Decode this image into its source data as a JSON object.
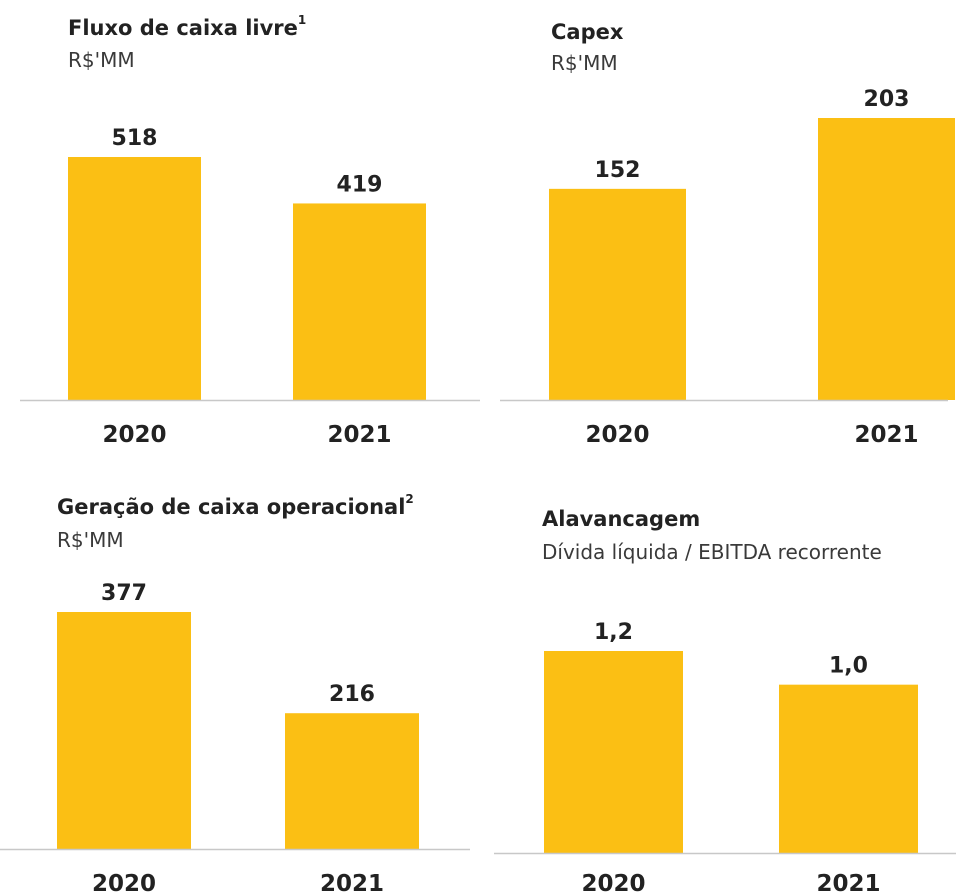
{
  "colors": {
    "bar": "#FBBF14",
    "axis": "#C8C8C8",
    "text": "#222222"
  },
  "panels": [
    {
      "title": "Fluxo de caixa livre",
      "superscript": "1",
      "subtitle": "R$'MM"
    },
    {
      "title": "Capex",
      "superscript": "",
      "subtitle": "R$'MM"
    },
    {
      "title": "Geração de caixa operacional",
      "superscript": "2",
      "subtitle": "R$'MM"
    },
    {
      "title": "Alavancagem",
      "superscript": "",
      "subtitle": "Dívida líquida / EBITDA recorrente"
    }
  ],
  "chart_data": [
    {
      "type": "bar",
      "title": "Fluxo de caixa livre",
      "subtitle": "R$'MM",
      "categories": [
        "2020",
        "2021"
      ],
      "values": [
        518,
        419
      ],
      "value_labels": [
        "518",
        "419"
      ],
      "ylim": [
        0,
        518
      ]
    },
    {
      "type": "bar",
      "title": "Capex",
      "subtitle": "R$'MM",
      "categories": [
        "2020",
        "2021"
      ],
      "values": [
        152,
        203
      ],
      "value_labels": [
        "152",
        "203"
      ],
      "ylim": [
        0,
        203
      ]
    },
    {
      "type": "bar",
      "title": "Geração de caixa operacional",
      "subtitle": "R$'MM",
      "categories": [
        "2020",
        "2021"
      ],
      "values": [
        377,
        216
      ],
      "value_labels": [
        "377",
        "216"
      ],
      "ylim": [
        0,
        377
      ]
    },
    {
      "type": "bar",
      "title": "Alavancagem",
      "subtitle": "Dívida líquida / EBITDA recorrente",
      "categories": [
        "2020",
        "2021"
      ],
      "values": [
        1.2,
        1.0
      ],
      "value_labels": [
        "1,2",
        "1,0"
      ],
      "ylim": [
        0,
        1.2
      ]
    }
  ]
}
